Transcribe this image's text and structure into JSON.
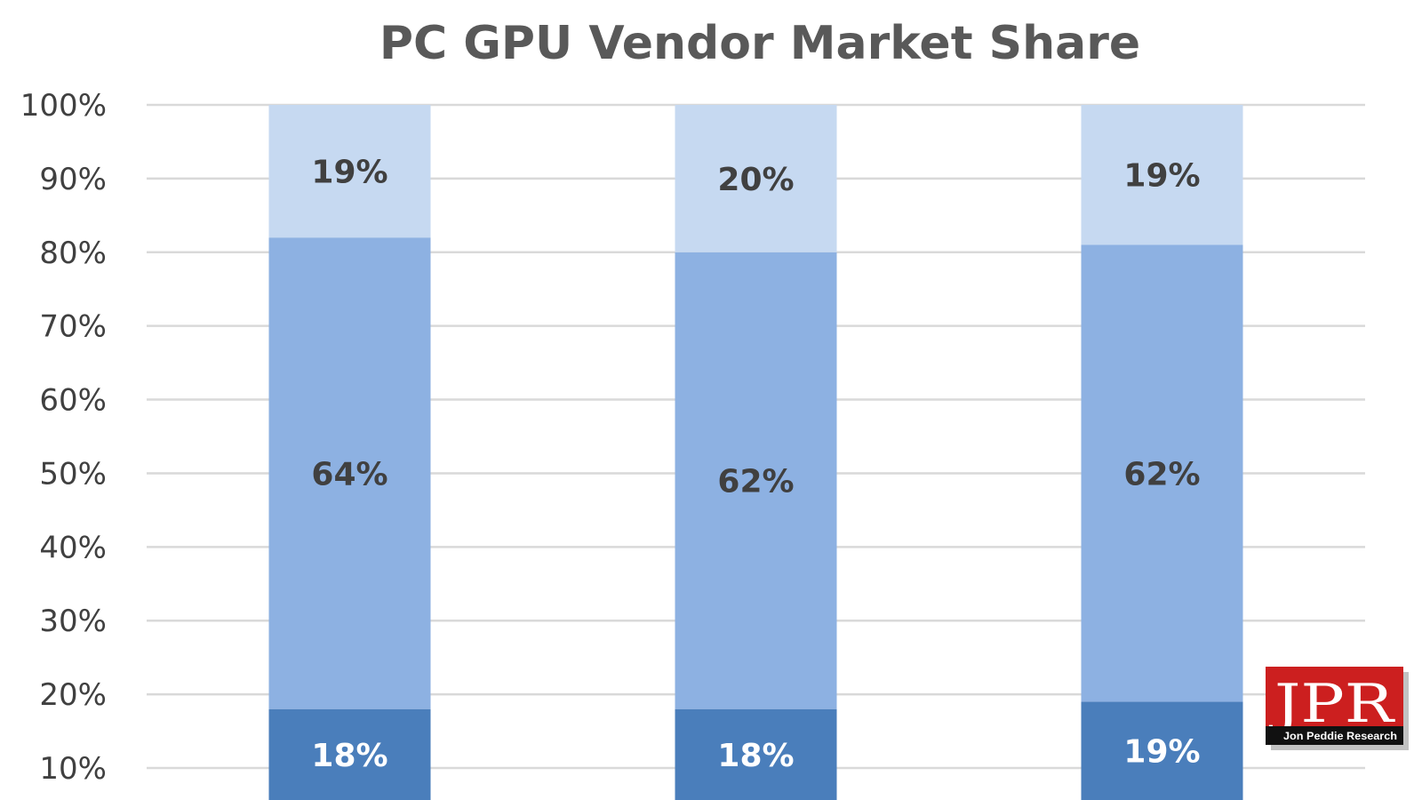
{
  "chart_data": {
    "type": "bar",
    "stacked": true,
    "title": "PC GPU Vendor Market Share",
    "xlabel": "",
    "ylabel": "",
    "ylim": [
      0,
      100
    ],
    "y_ticks": [
      "10%",
      "20%",
      "30%",
      "40%",
      "50%",
      "60%",
      "70%",
      "80%",
      "90%",
      "100%"
    ],
    "grid": true,
    "legend": "none",
    "categories": [
      "",
      "",
      ""
    ],
    "series": [
      {
        "values": [
          18,
          18,
          19
        ],
        "labels": [
          "18%",
          "18%",
          "19%"
        ],
        "color": "#4a7ebb",
        "label_color": "#ffffff"
      },
      {
        "values": [
          64,
          62,
          62
        ],
        "labels": [
          "64%",
          "62%",
          "62%"
        ],
        "color": "#8db1e2",
        "label_color": "#404040"
      },
      {
        "values": [
          19,
          20,
          19
        ],
        "labels": [
          "19%",
          "20%",
          "19%"
        ],
        "color": "#c6d9f1",
        "label_color": "#404040"
      }
    ]
  },
  "logo": {
    "text": "JPR",
    "subtext": "Jon Peddie Research",
    "bg_color": "#cc1f1f"
  }
}
